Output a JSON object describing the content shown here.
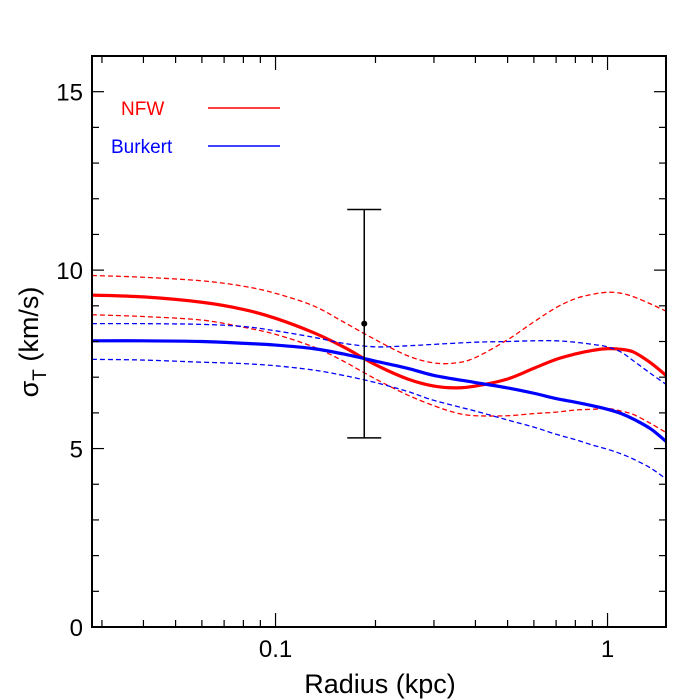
{
  "chart_data": {
    "type": "line",
    "title": "",
    "xlabel": "Radius (kpc)",
    "ylabel_main": "σ",
    "ylabel_sub": "T",
    "ylabel_units": " (km/s)",
    "xscale": "log",
    "xlim": [
      0.028,
      1.5
    ],
    "ylim": [
      0,
      16
    ],
    "x_ticks": [
      {
        "value": 0.1,
        "label": "0.1"
      },
      {
        "value": 1,
        "label": "1"
      }
    ],
    "y_ticks": [
      {
        "value": 0,
        "label": "0"
      },
      {
        "value": 5,
        "label": "5"
      },
      {
        "value": 10,
        "label": "10"
      },
      {
        "value": 15,
        "label": "15"
      }
    ],
    "legend": {
      "position": "top-left",
      "entries": [
        {
          "label": "NFW",
          "color": "#ff0000"
        },
        {
          "label": "Burkert",
          "color": "#0000ff"
        }
      ]
    },
    "series": [
      {
        "name": "NFW",
        "style": "solid",
        "color": "#ff0000",
        "x": [
          0.028,
          0.04,
          0.06,
          0.08,
          0.1,
          0.13,
          0.16,
          0.2,
          0.25,
          0.3,
          0.35,
          0.4,
          0.5,
          0.6,
          0.7,
          0.8,
          0.9,
          1.0,
          1.1,
          1.2,
          1.35,
          1.5
        ],
        "y": [
          9.3,
          9.25,
          9.1,
          8.9,
          8.65,
          8.25,
          7.85,
          7.35,
          6.95,
          6.75,
          6.7,
          6.75,
          6.95,
          7.25,
          7.5,
          7.65,
          7.75,
          7.8,
          7.78,
          7.7,
          7.4,
          7.05
        ]
      },
      {
        "name": "NFW upper",
        "style": "dashed",
        "color": "#ff0000",
        "x": [
          0.028,
          0.04,
          0.06,
          0.08,
          0.1,
          0.13,
          0.16,
          0.2,
          0.25,
          0.3,
          0.35,
          0.4,
          0.5,
          0.6,
          0.7,
          0.8,
          0.9,
          1.0,
          1.1,
          1.2,
          1.35,
          1.5
        ],
        "y": [
          9.85,
          9.8,
          9.7,
          9.55,
          9.35,
          9.0,
          8.55,
          8.05,
          7.6,
          7.4,
          7.4,
          7.55,
          8.05,
          8.55,
          8.95,
          9.2,
          9.32,
          9.38,
          9.35,
          9.25,
          9.05,
          8.85
        ]
      },
      {
        "name": "NFW lower",
        "style": "dashed",
        "color": "#ff0000",
        "x": [
          0.028,
          0.04,
          0.06,
          0.08,
          0.1,
          0.13,
          0.16,
          0.2,
          0.25,
          0.3,
          0.35,
          0.4,
          0.5,
          0.6,
          0.7,
          0.8,
          0.9,
          1.0,
          1.1,
          1.2,
          1.35,
          1.5
        ],
        "y": [
          8.75,
          8.7,
          8.6,
          8.4,
          8.2,
          7.85,
          7.45,
          6.95,
          6.5,
          6.2,
          6.0,
          5.92,
          5.92,
          5.98,
          6.02,
          6.08,
          6.1,
          6.12,
          6.05,
          5.95,
          5.7,
          5.45
        ]
      },
      {
        "name": "Burkert",
        "style": "solid",
        "color": "#0000ff",
        "x": [
          0.028,
          0.04,
          0.06,
          0.08,
          0.1,
          0.13,
          0.16,
          0.2,
          0.25,
          0.3,
          0.4,
          0.5,
          0.6,
          0.7,
          0.8,
          0.9,
          1.0,
          1.1,
          1.2,
          1.35,
          1.5
        ],
        "y": [
          8.02,
          8.02,
          8.0,
          7.95,
          7.9,
          7.8,
          7.65,
          7.45,
          7.25,
          7.05,
          6.85,
          6.7,
          6.55,
          6.4,
          6.3,
          6.2,
          6.1,
          5.98,
          5.82,
          5.55,
          5.2
        ]
      },
      {
        "name": "Burkert upper",
        "style": "dashed",
        "color": "#0000ff",
        "x": [
          0.028,
          0.04,
          0.06,
          0.08,
          0.1,
          0.13,
          0.16,
          0.2,
          0.25,
          0.3,
          0.4,
          0.5,
          0.6,
          0.7,
          0.8,
          0.9,
          1.0,
          1.1,
          1.2,
          1.35,
          1.5
        ],
        "y": [
          8.5,
          8.5,
          8.48,
          8.42,
          8.3,
          8.12,
          7.95,
          7.85,
          7.88,
          7.92,
          7.98,
          8.0,
          8.02,
          8.02,
          7.98,
          7.92,
          7.85,
          7.7,
          7.45,
          7.1,
          6.8
        ]
      },
      {
        "name": "Burkert lower",
        "style": "dashed",
        "color": "#0000ff",
        "x": [
          0.028,
          0.04,
          0.06,
          0.08,
          0.1,
          0.13,
          0.16,
          0.2,
          0.25,
          0.3,
          0.4,
          0.5,
          0.6,
          0.7,
          0.8,
          0.9,
          1.0,
          1.1,
          1.2,
          1.35,
          1.5
        ],
        "y": [
          7.5,
          7.48,
          7.42,
          7.38,
          7.32,
          7.2,
          7.05,
          6.85,
          6.6,
          6.35,
          6.05,
          5.8,
          5.6,
          5.4,
          5.25,
          5.1,
          4.98,
          4.85,
          4.7,
          4.45,
          4.15
        ]
      }
    ],
    "data_point": {
      "x": 0.185,
      "y": 8.5,
      "y_low": 5.3,
      "y_high": 11.7,
      "color": "#000000"
    }
  }
}
